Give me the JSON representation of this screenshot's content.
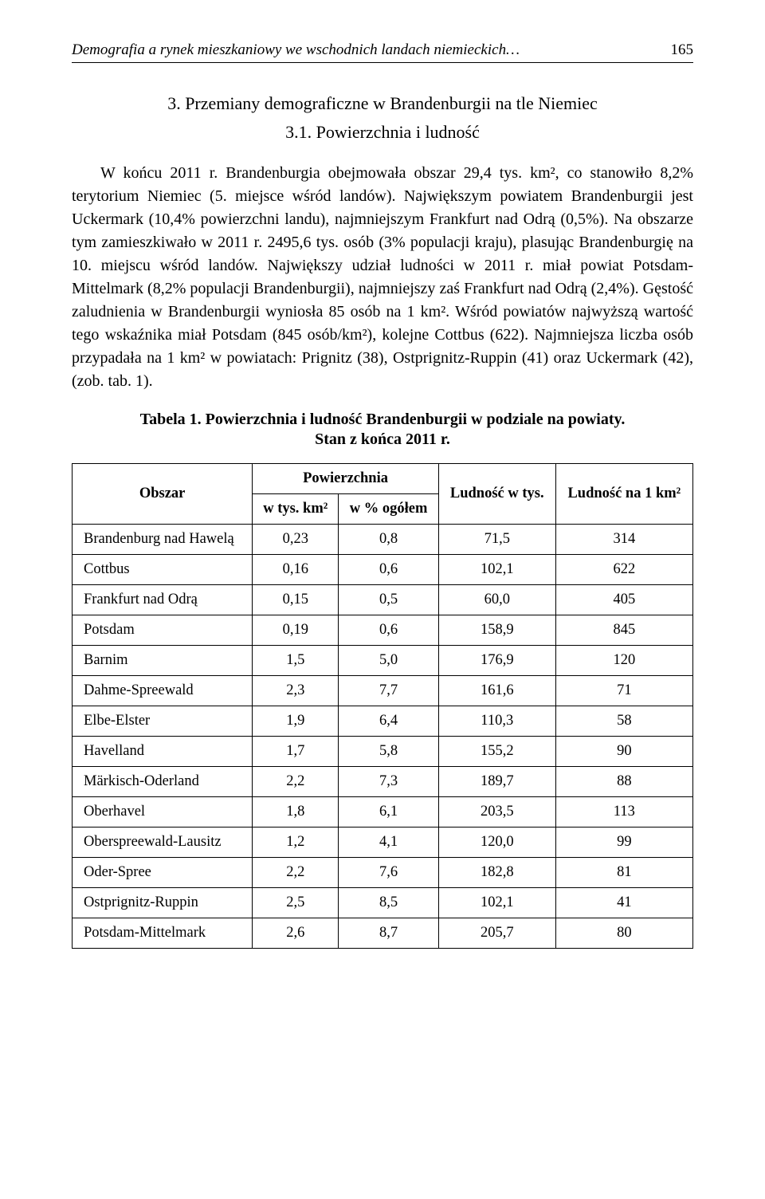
{
  "header": {
    "running_title": "Demografia a rynek mieszkaniowy we wschodnich landach niemieckich…",
    "page_number": "165"
  },
  "section": {
    "title": "3. Przemiany demograficzne w Brandenburgii na tle Niemiec",
    "subsection": "3.1. Powierzchnia i ludność"
  },
  "paragraph": "W końcu 2011 r. Brandenburgia obejmowała obszar 29,4 tys. km², co stanowiło 8,2% terytorium Niemiec (5. miejsce wśród landów). Największym powiatem Brandenburgii jest Uckermark (10,4% powierzchni landu), najmniejszym Frankfurt nad Odrą (0,5%). Na obszarze tym zamieszkiwało w 2011 r. 2495,6 tys. osób (3% populacji kraju), plasując Brandenburgię na 10. miejscu wśród landów. Największy udział ludności w 2011 r. miał powiat Potsdam-Mittelmark (8,2% populacji Brandenburgii), najmniejszy zaś Frankfurt nad Odrą (2,4%). Gęstość zaludnienia w Brandenburgii wyniosła 85 osób na 1 km². Wśród powiatów najwyższą wartość tego wskaźnika miał Potsdam (845 osób/km²), kolejne Cottbus (622). Najmniejsza liczba osób przypadała na 1 km² w powiatach: Prignitz (38), Ostprignitz-Ruppin (41) oraz Uckermark (42), (zob. tab. 1).",
  "table": {
    "title": "Tabela 1. Powierzchnia i ludność Brandenburgii w podziale na powiaty.",
    "subtitle": "Stan z końca 2011 r.",
    "headers": {
      "area": "Obszar",
      "surface": "Powierzchnia",
      "surface_km": "w tys. km²",
      "surface_pct": "w % ogółem",
      "pop": "Ludność w tys.",
      "pop_per_km": "Ludność na 1 km²"
    },
    "rows": [
      {
        "area": "Brandenburg nad Hawelą",
        "km": "0,23",
        "pct": "0,8",
        "pop": "71,5",
        "dens": "314"
      },
      {
        "area": "Cottbus",
        "km": "0,16",
        "pct": "0,6",
        "pop": "102,1",
        "dens": "622"
      },
      {
        "area": "Frankfurt nad Odrą",
        "km": "0,15",
        "pct": "0,5",
        "pop": "60,0",
        "dens": "405"
      },
      {
        "area": "Potsdam",
        "km": "0,19",
        "pct": "0,6",
        "pop": "158,9",
        "dens": "845"
      },
      {
        "area": "Barnim",
        "km": "1,5",
        "pct": "5,0",
        "pop": "176,9",
        "dens": "120"
      },
      {
        "area": "Dahme-Spreewald",
        "km": "2,3",
        "pct": "7,7",
        "pop": "161,6",
        "dens": "71"
      },
      {
        "area": "Elbe-Elster",
        "km": "1,9",
        "pct": "6,4",
        "pop": "110,3",
        "dens": "58"
      },
      {
        "area": "Havelland",
        "km": "1,7",
        "pct": "5,8",
        "pop": "155,2",
        "dens": "90"
      },
      {
        "area": "Märkisch-Oderland",
        "km": "2,2",
        "pct": "7,3",
        "pop": "189,7",
        "dens": "88"
      },
      {
        "area": "Oberhavel",
        "km": "1,8",
        "pct": "6,1",
        "pop": "203,5",
        "dens": "113"
      },
      {
        "area": "Oberspreewald-Lausitz",
        "km": "1,2",
        "pct": "4,1",
        "pop": "120,0",
        "dens": "99"
      },
      {
        "area": "Oder-Spree",
        "km": "2,2",
        "pct": "7,6",
        "pop": "182,8",
        "dens": "81"
      },
      {
        "area": "Ostprignitz-Ruppin",
        "km": "2,5",
        "pct": "8,5",
        "pop": "102,1",
        "dens": "41"
      },
      {
        "area": "Potsdam-Mittelmark",
        "km": "2,6",
        "pct": "8,7",
        "pop": "205,7",
        "dens": "80"
      }
    ]
  },
  "style": {
    "background_color": "#ffffff",
    "text_color": "#000000",
    "body_fontsize": 20,
    "table_fontsize": 18.5,
    "title_fontsize": 22,
    "header_fontsize": 19,
    "border_color": "#000000"
  }
}
